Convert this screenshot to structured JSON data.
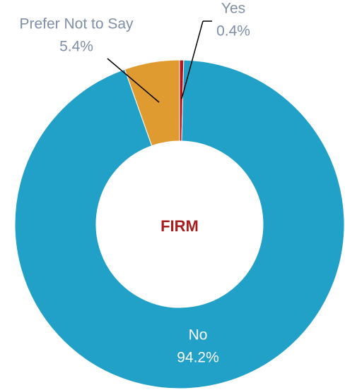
{
  "chart_data": {
    "type": "donut",
    "center_label": "FIRM",
    "categories": [
      "Yes",
      "No",
      "Prefer Not to Say"
    ],
    "values": [
      0.4,
      94.2,
      5.4
    ],
    "value_labels": [
      "0.4%",
      "94.2%",
      "5.4%"
    ],
    "colors": [
      "#b3161c",
      "#21a0c8",
      "#e09b30"
    ]
  }
}
